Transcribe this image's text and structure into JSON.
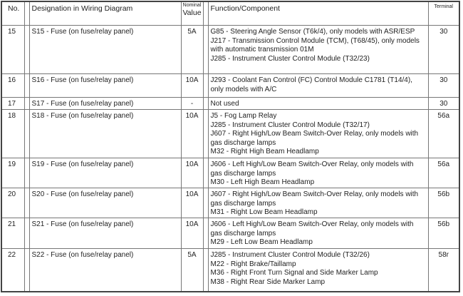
{
  "header": {
    "no": "No.",
    "designation": "Designation in Wiring Diagram",
    "nominal": "Nominal",
    "value": "Value",
    "function": "Function/Component",
    "terminal": "Terminal"
  },
  "rows": [
    {
      "no": "15",
      "designation": "S15 - Fuse (on fuse/relay panel)",
      "value": "5A",
      "functions": [
        "G85 - Steering Angle Sensor (T6k/4), only models with ASR/ESP",
        "J217 - Transmission Control Module (TCM), (T68/45), only models with automatic transmission 01M",
        "J285 - Instrument Cluster Control Module (T32/23)"
      ],
      "terminal": "30"
    },
    {
      "no": "16",
      "designation": "S16 - Fuse (on fuse/relay panel)",
      "value": "10A",
      "functions": [
        "J293 - Coolant Fan Control (FC) Control Module C1781 (T14/4), only models with A/C"
      ],
      "terminal": "30"
    },
    {
      "no": "17",
      "designation": "S17 - Fuse (on fuse/relay panel)",
      "value": "-",
      "functions": [
        "Not used"
      ],
      "terminal": "30"
    },
    {
      "no": "18",
      "designation": "S18 - Fuse (on fuse/relay panel)",
      "value": "10A",
      "functions": [
        "J5 - Fog Lamp Relay",
        "J285 - Instrument Cluster Control Module (T32/17)",
        "J607 - Right High/Low Beam Switch-Over Relay, only models with gas discharge lamps",
        "M32 - Right High Beam Headlamp"
      ],
      "terminal": "56a"
    },
    {
      "no": "19",
      "designation": "S19 - Fuse (on fuse/relay panel)",
      "value": "10A",
      "functions": [
        "J606 - Left High/Low Beam Switch-Over Relay, only models with gas discharge lamps",
        "M30 - Left High Beam Headlamp"
      ],
      "terminal": "56a"
    },
    {
      "no": "20",
      "designation": "S20 - Fuse (on fuse/relay panel)",
      "value": "10A",
      "functions": [
        "J607 - Right High/Low Beam Switch-Over Relay, only models with gas discharge lamps",
        "M31 - Right Low Beam Headlamp"
      ],
      "terminal": "56b"
    },
    {
      "no": "21",
      "designation": "S21 - Fuse (on fuse/relay panel)",
      "value": "10A",
      "functions": [
        "J606 - Left High/Low Beam Switch-Over Relay, only models with gas discharge lamps",
        "M29 - Left Low Beam Headlamp"
      ],
      "terminal": "56b"
    },
    {
      "no": "22",
      "designation": "S22 - Fuse (on fuse/relay panel)",
      "value": "5A",
      "functions": [
        "J285 - Instrument Cluster Control Module (T32/26)",
        "M22 - Right Brake/Taillamp",
        "M36 - Right Front Turn Signal and Side Marker Lamp",
        "M38 - Right Rear Side Marker Lamp"
      ],
      "terminal": "58r"
    }
  ]
}
